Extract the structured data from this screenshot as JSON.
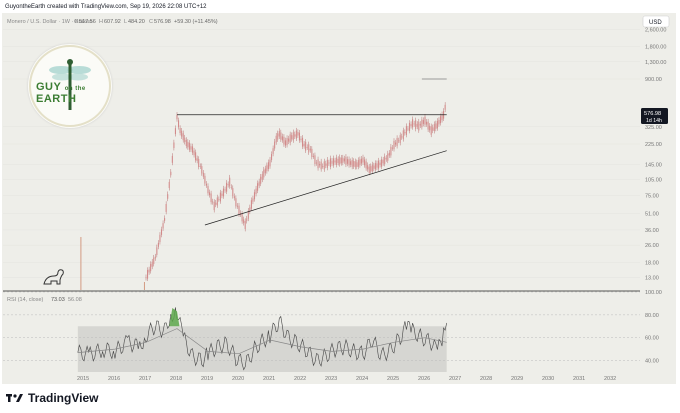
{
  "header": {
    "credit": "GuyontheEarth created with TradingView.com, Sep 19, 2026 22:08 UTC+12"
  },
  "legend": {
    "symbol": "Monero / U.S. Dollar · 1W · Kraken",
    "o_label": "O",
    "o": "517.56",
    "h_label": "H",
    "h": "607.92",
    "l_label": "L",
    "l": "484.20",
    "c_label": "C",
    "c": "576.98",
    "change": "+59.30 (+11.45%)"
  },
  "currency_button": "USD",
  "price_tag": {
    "price": "576.98",
    "countdown": "1d 14h"
  },
  "rsi_legend": {
    "label": "RSI (14, close)",
    "rsi": "73.03",
    "ma": "56.08"
  },
  "logo": {
    "word1": "GUY",
    "word2": "on the",
    "word3": "EARTH"
  },
  "footer": {
    "brand": "TradingView"
  },
  "colors": {
    "background": "#eeeee9",
    "candles": "#d28a8a",
    "wicks": "#b87373",
    "trendline": "#222222",
    "rsi_line": "#444444",
    "rsi_ma": "#888888",
    "rsi_band": "#d6d6d2",
    "overbought_fill": "#5aa64a",
    "logo_green": "#3c7d33"
  },
  "chart_data": [
    {
      "type": "line",
      "title": "Monero / U.S. Dollar · 1W · Kraken",
      "y_scale": "log",
      "x_ticks": [
        "2015",
        "2016",
        "2017",
        "2018",
        "2019",
        "2020",
        "2021",
        "2022",
        "2023",
        "2024",
        "2025",
        "2026",
        "2027",
        "2028",
        "2029",
        "2030",
        "2031",
        "2032"
      ],
      "y_ticks": [
        13.0,
        18.0,
        26.0,
        36.0,
        51.0,
        75.0,
        105.0,
        145.0,
        225.0,
        325.0,
        900.0,
        1300.0,
        1800.0,
        2600.0
      ],
      "y_tick_labels": [
        "13.00",
        "18.00",
        "26.00",
        "36.00",
        "51.00",
        "75.00",
        "105.00",
        "145.00",
        "225.00",
        "325.00",
        "900.00",
        "1,300.00",
        "1,800.00",
        "2,600.00"
      ],
      "ylim": [
        10,
        3600
      ],
      "series": [
        {
          "x": [
            2017.0,
            2017.3,
            2017.6,
            2017.8,
            2018.0,
            2018.1,
            2018.3,
            2018.5,
            2018.8,
            2019.0,
            2019.2,
            2019.5,
            2019.7,
            2019.9,
            2020.0,
            2020.2,
            2020.4,
            2020.6,
            2020.8,
            2021.0,
            2021.2,
            2021.3,
            2021.5,
            2021.7,
            2021.9,
            2022.1,
            2022.3,
            2022.5,
            2022.7,
            2022.9,
            2023.1,
            2023.4,
            2023.6,
            2023.8,
            2024.0,
            2024.2,
            2024.4,
            2024.6,
            2024.8,
            2025.0,
            2025.2,
            2025.4,
            2025.6,
            2025.8,
            2026.0,
            2026.2,
            2026.4,
            2026.6,
            2026.7
          ],
          "y": [
            13,
            20,
            45,
            120,
            400,
            300,
            230,
            200,
            130,
            85,
            60,
            80,
            100,
            65,
            55,
            40,
            62,
            90,
            120,
            150,
            250,
            280,
            230,
            260,
            280,
            220,
            200,
            150,
            140,
            150,
            155,
            160,
            150,
            145,
            160,
            130,
            140,
            150,
            170,
            220,
            250,
            300,
            350,
            330,
            370,
            300,
            340,
            420,
            577
          ]
        }
      ],
      "annotations": [
        {
          "type": "horizontal_resistance",
          "y": 420,
          "x_range": [
            2018.0,
            2026.7
          ]
        },
        {
          "type": "rising_support",
          "from": [
            2018.9,
            40
          ],
          "to": [
            2026.7,
            195
          ]
        },
        {
          "type": "target_marker",
          "y": 900,
          "x_range": [
            2025.9,
            2026.7
          ]
        }
      ]
    },
    {
      "type": "line",
      "title": "RSI (14, close)",
      "y_ticks": [
        40,
        60,
        80,
        100
      ],
      "y_tick_labels": [
        "40.00",
        "60.00",
        "80.00",
        "100.00"
      ],
      "ylim": [
        30,
        100
      ],
      "band": [
        30,
        70
      ],
      "series": [
        {
          "x": [
            2014.8,
            2015.2,
            2015.6,
            2016.0,
            2016.4,
            2016.8,
            2017.0,
            2017.3,
            2017.6,
            2017.8,
            2018.0,
            2018.2,
            2018.5,
            2018.8,
            2019.0,
            2019.3,
            2019.6,
            2019.9,
            2020.2,
            2020.5,
            2020.8,
            2021.0,
            2021.3,
            2021.6,
            2021.9,
            2022.2,
            2022.5,
            2022.8,
            2023.1,
            2023.4,
            2023.7,
            2024.0,
            2024.3,
            2024.6,
            2024.9,
            2025.2,
            2025.4,
            2025.6,
            2025.9,
            2026.2,
            2026.4,
            2026.6,
            2026.7
          ],
          "y": [
            47,
            45,
            50,
            48,
            56,
            52,
            62,
            70,
            66,
            80,
            83,
            60,
            44,
            40,
            46,
            52,
            55,
            42,
            36,
            50,
            58,
            62,
            74,
            60,
            55,
            48,
            40,
            44,
            50,
            52,
            48,
            46,
            58,
            44,
            50,
            60,
            70,
            66,
            60,
            56,
            48,
            62,
            73
          ]
        },
        {
          "x": [
            2014.8,
            2016.0,
            2017.0,
            2018.0,
            2019.0,
            2020.0,
            2021.0,
            2022.0,
            2023.0,
            2024.0,
            2025.0,
            2026.0,
            2026.7
          ],
          "y": [
            47,
            50,
            56,
            68,
            48,
            46,
            58,
            52,
            48,
            50,
            56,
            60,
            56
          ]
        }
      ]
    }
  ]
}
